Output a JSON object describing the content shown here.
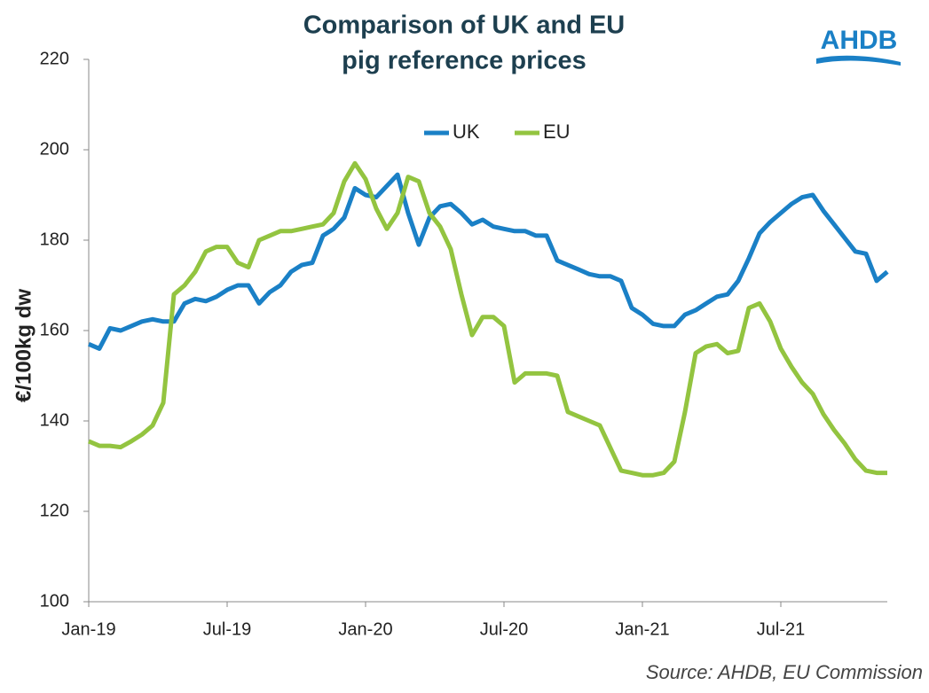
{
  "chart_data": {
    "type": "line",
    "title": "Comparison of UK and EU",
    "subtitle": "pig reference prices",
    "logo": "AHDB",
    "y_label": "€/100kg dw",
    "source": "Source: AHDB, EU Commission",
    "legend": "top",
    "categories": [
      "Jan-19",
      null,
      null,
      null,
      null,
      null,
      null,
      null,
      null,
      null,
      null,
      null,
      null,
      "Jul-19",
      null,
      null,
      null,
      null,
      null,
      null,
      null,
      null,
      null,
      null,
      null,
      null,
      "Jan-20",
      null,
      null,
      null,
      null,
      null,
      null,
      null,
      null,
      null,
      null,
      null,
      null,
      "Jul-20",
      null,
      null,
      null,
      null,
      null,
      null,
      null,
      null,
      null,
      null,
      null,
      null,
      "Jan-21",
      null,
      null,
      null,
      null,
      null,
      null,
      null,
      null,
      null,
      null,
      null,
      null,
      "Jul-21",
      null,
      null,
      null,
      null,
      null,
      null,
      null,
      null,
      null,
      null
    ],
    "series": [
      {
        "name": "UK",
        "color": "#1a80c6",
        "values": [
          157,
          156,
          160.5,
          160,
          161,
          162,
          162.5,
          162,
          162,
          166,
          167,
          166.5,
          167.5,
          169,
          170,
          170,
          166,
          168.5,
          170,
          173,
          174.5,
          175,
          181,
          182.5,
          185,
          191.5,
          190,
          189.5,
          192,
          194.5,
          186,
          179,
          185,
          187.5,
          188,
          186,
          183.5,
          184.5,
          183,
          182.5,
          182,
          182,
          181,
          181,
          175.5,
          174.5,
          173.5,
          172.5,
          172,
          172,
          171,
          165,
          163.5,
          161.5,
          161,
          161,
          163.5,
          164.5,
          166,
          167.5,
          168,
          171,
          176,
          181.5,
          184,
          186,
          188,
          189.5,
          190,
          186.5,
          183.5,
          180.5,
          177.5,
          177,
          171,
          173
        ]
      },
      {
        "name": "EU",
        "color": "#93c440",
        "values": [
          135.5,
          134.5,
          134.5,
          134.2,
          135.5,
          137,
          139,
          144,
          168,
          170,
          173,
          177.5,
          178.5,
          178.5,
          175,
          174,
          180,
          181,
          182,
          182,
          182.5,
          183,
          183.5,
          186,
          193,
          197,
          193.5,
          187,
          182.5,
          186,
          194,
          193,
          186,
          183,
          178,
          168,
          159,
          163,
          163,
          161,
          148.5,
          150.5,
          150.5,
          150.5,
          150,
          142,
          141,
          140,
          139,
          134,
          129,
          128.5,
          128,
          128,
          128.5,
          131,
          142,
          155,
          156.5,
          157,
          155,
          155.5,
          165,
          166,
          162,
          156,
          152,
          148.5,
          146,
          141.5,
          138,
          135,
          131.5,
          129,
          128.5,
          128.5
        ]
      }
    ],
    "ylim": [
      100,
      220
    ],
    "yticks": [
      100,
      120,
      140,
      160,
      180,
      200,
      220
    ],
    "grid": false
  }
}
